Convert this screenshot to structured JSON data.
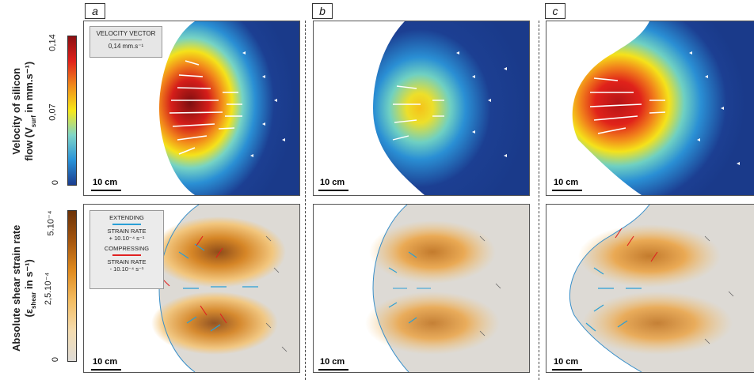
{
  "panels": [
    "a",
    "b",
    "c"
  ],
  "top_row": {
    "axis_label_line1": "Velocity of silicon",
    "axis_label_line2": "flow (V",
    "axis_label_sub": "surf",
    "axis_label_tail": " in mm.s⁻¹)",
    "ticks": [
      "0,14",
      "0,07",
      "0"
    ],
    "legend_title": "VELOCITY VECTOR",
    "legend_value": "0,14 mm.s⁻¹"
  },
  "bottom_row": {
    "axis_label_line1": "Absolute shear strain rate",
    "axis_label_line2": "(ε",
    "axis_label_sub": "shear",
    "axis_label_tail": " in s⁻¹)",
    "ticks": [
      "5.10⁻⁴",
      "2,5.10⁻⁴",
      "0"
    ],
    "legend_extending_1": "EXTENDING",
    "legend_extending_2": "STRAIN RATE",
    "legend_extending_3": "+ 10.10⁻⁴ s⁻¹",
    "legend_compressing_1": "COMPRESSING",
    "legend_compressing_2": "STRAIN RATE",
    "legend_compressing_3": "- 10.10⁻⁴ s⁻¹"
  },
  "scale_label": "10 cm",
  "colors": {
    "extending": "#2a9fd6",
    "compressing": "#e02020",
    "flow_low": "#1b3d8f",
    "flow_high": "#8b0f12",
    "strain_low": "#d8d8d8",
    "strain_high": "#7a3a0a"
  }
}
